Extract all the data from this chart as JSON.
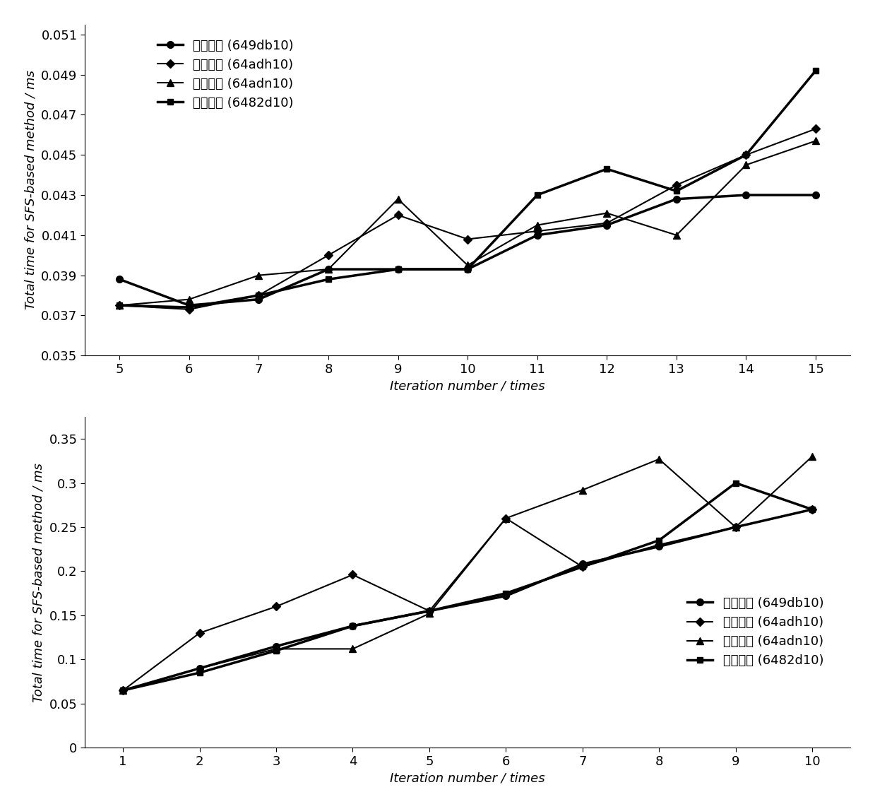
{
  "top_chart": {
    "x": [
      5,
      6,
      7,
      8,
      9,
      10,
      11,
      12,
      13,
      14,
      15
    ],
    "wave": [
      0.0388,
      0.0375,
      0.0378,
      0.0393,
      0.0393,
      0.0393,
      0.041,
      0.0415,
      0.0428,
      0.043,
      0.043
    ],
    "rain": [
      0.0375,
      0.0373,
      0.038,
      0.04,
      0.042,
      0.0408,
      0.0412,
      0.0416,
      0.0435,
      0.045,
      0.0463
    ],
    "waterfall": [
      0.0375,
      0.0378,
      0.039,
      0.0393,
      0.0428,
      0.0395,
      0.0415,
      0.0421,
      0.041,
      0.0445,
      0.0457
    ],
    "fountain": [
      0.0375,
      0.0374,
      0.038,
      0.0388,
      0.0393,
      0.0393,
      0.043,
      0.0443,
      0.0432,
      0.045,
      0.0492
    ],
    "ylim": [
      0.035,
      0.0515
    ],
    "yticks": [
      0.035,
      0.037,
      0.039,
      0.041,
      0.043,
      0.045,
      0.047,
      0.049,
      0.051
    ],
    "ytick_labels": [
      "0.035",
      "0.037",
      "0.039",
      "0.041",
      "0.043",
      "0.045",
      "0.047",
      "0.049",
      "0.051"
    ],
    "ylabel": "Total time for SFS-based method / ms",
    "xlabel": "Iteration number / times"
  },
  "bottom_chart": {
    "x": [
      1,
      2,
      3,
      4,
      5,
      6,
      7,
      8,
      9,
      10
    ],
    "wave": [
      0.065,
      0.09,
      0.115,
      0.138,
      0.155,
      0.172,
      0.208,
      0.228,
      0.25,
      0.27
    ],
    "rain": [
      0.065,
      0.13,
      0.16,
      0.196,
      0.155,
      0.26,
      0.205,
      0.23,
      0.25,
      0.27
    ],
    "waterfall": [
      0.065,
      0.09,
      0.112,
      0.112,
      0.152,
      0.26,
      0.292,
      0.327,
      0.25,
      0.33
    ],
    "fountain": [
      0.065,
      0.085,
      0.11,
      0.138,
      0.155,
      0.175,
      0.205,
      0.235,
      0.3,
      0.27
    ],
    "ylim": [
      0,
      0.375
    ],
    "yticks": [
      0,
      0.05,
      0.1,
      0.15,
      0.2,
      0.25,
      0.3,
      0.35
    ],
    "ytick_labels": [
      "0",
      "0.05",
      "0.1",
      "0.15",
      "0.2",
      "0.25",
      "0.3",
      "0.35"
    ],
    "ylabel": "Total time for SFS-based method / ms",
    "xlabel": "Iteration number / times"
  },
  "legend_labels": [
    "波纹场景 (649db10)",
    "雨滴场景 (64adh10)",
    "瀋布场景 (64adn10)",
    "喷泉场景 (6482d10)"
  ],
  "line_color": "#000000"
}
